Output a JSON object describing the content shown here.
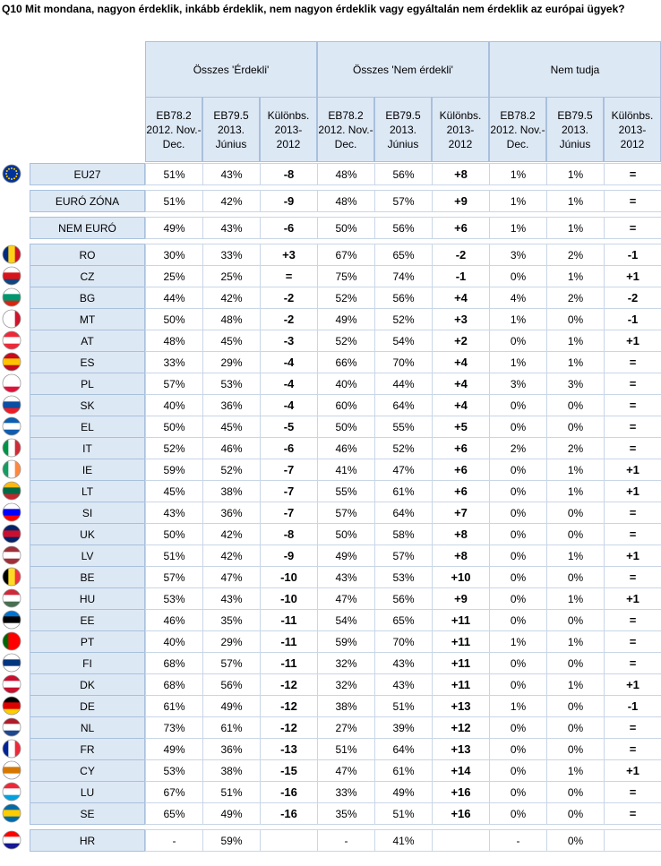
{
  "title": "Q10 Mit mondana, nagyon érdeklik, inkább érdeklik, nem nagyon érdeklik vagy egyáltalán nem érdeklik az európai ügyek?",
  "header": {
    "groups": [
      "Összes 'Érdekli'",
      "Összes 'Nem érdekli'",
      "Nem tudja"
    ],
    "subheaders": [
      "EB78.2\n2012. Nov.-\nDec.",
      "EB79.5\n2013.\nJúnius",
      "Különbs.\n2013-\n2012",
      "EB78.2\n2012. Nov.-\nDec.",
      "EB79.5\n2013.\nJúnius",
      "Különbs.\n2013-\n2012",
      "EB78.2\n2012. Nov.-\nDec.",
      "EB79.5\n2013.\nJúnius",
      "Különbs.\n2013-\n2012"
    ]
  },
  "table": {
    "rows": [
      {
        "label": "EU27",
        "cells": [
          "51%",
          "43%",
          "-8",
          "48%",
          "56%",
          "+8",
          "1%",
          "1%",
          "="
        ]
      },
      {
        "label": "EURÓ ZÓNA",
        "cells": [
          "51%",
          "42%",
          "-9",
          "48%",
          "57%",
          "+9",
          "1%",
          "1%",
          "="
        ]
      },
      {
        "label": "NEM EURÓ",
        "cells": [
          "49%",
          "43%",
          "-6",
          "50%",
          "56%",
          "+6",
          "1%",
          "1%",
          "="
        ]
      },
      {
        "label": "RO",
        "cells": [
          "30%",
          "33%",
          "+3",
          "67%",
          "65%",
          "-2",
          "3%",
          "2%",
          "-1"
        ]
      },
      {
        "label": "CZ",
        "cells": [
          "25%",
          "25%",
          "=",
          "75%",
          "74%",
          "-1",
          "0%",
          "1%",
          "+1"
        ]
      },
      {
        "label": "BG",
        "cells": [
          "44%",
          "42%",
          "-2",
          "52%",
          "56%",
          "+4",
          "4%",
          "2%",
          "-2"
        ]
      },
      {
        "label": "MT",
        "cells": [
          "50%",
          "48%",
          "-2",
          "49%",
          "52%",
          "+3",
          "1%",
          "0%",
          "-1"
        ]
      },
      {
        "label": "AT",
        "cells": [
          "48%",
          "45%",
          "-3",
          "52%",
          "54%",
          "+2",
          "0%",
          "1%",
          "+1"
        ]
      },
      {
        "label": "ES",
        "cells": [
          "33%",
          "29%",
          "-4",
          "66%",
          "70%",
          "+4",
          "1%",
          "1%",
          "="
        ]
      },
      {
        "label": "PL",
        "cells": [
          "57%",
          "53%",
          "-4",
          "40%",
          "44%",
          "+4",
          "3%",
          "3%",
          "="
        ]
      },
      {
        "label": "SK",
        "cells": [
          "40%",
          "36%",
          "-4",
          "60%",
          "64%",
          "+4",
          "0%",
          "0%",
          "="
        ]
      },
      {
        "label": "EL",
        "cells": [
          "50%",
          "45%",
          "-5",
          "50%",
          "55%",
          "+5",
          "0%",
          "0%",
          "="
        ]
      },
      {
        "label": "IT",
        "cells": [
          "52%",
          "46%",
          "-6",
          "46%",
          "52%",
          "+6",
          "2%",
          "2%",
          "="
        ]
      },
      {
        "label": "IE",
        "cells": [
          "59%",
          "52%",
          "-7",
          "41%",
          "47%",
          "+6",
          "0%",
          "1%",
          "+1"
        ]
      },
      {
        "label": "LT",
        "cells": [
          "45%",
          "38%",
          "-7",
          "55%",
          "61%",
          "+6",
          "0%",
          "1%",
          "+1"
        ]
      },
      {
        "label": "SI",
        "cells": [
          "43%",
          "36%",
          "-7",
          "57%",
          "64%",
          "+7",
          "0%",
          "0%",
          "="
        ]
      },
      {
        "label": "UK",
        "cells": [
          "50%",
          "42%",
          "-8",
          "50%",
          "58%",
          "+8",
          "0%",
          "0%",
          "="
        ]
      },
      {
        "label": "LV",
        "cells": [
          "51%",
          "42%",
          "-9",
          "49%",
          "57%",
          "+8",
          "0%",
          "1%",
          "+1"
        ]
      },
      {
        "label": "BE",
        "cells": [
          "57%",
          "47%",
          "-10",
          "43%",
          "53%",
          "+10",
          "0%",
          "0%",
          "="
        ]
      },
      {
        "label": "HU",
        "cells": [
          "53%",
          "43%",
          "-10",
          "47%",
          "56%",
          "+9",
          "0%",
          "1%",
          "+1"
        ]
      },
      {
        "label": "EE",
        "cells": [
          "46%",
          "35%",
          "-11",
          "54%",
          "65%",
          "+11",
          "0%",
          "0%",
          "="
        ]
      },
      {
        "label": "PT",
        "cells": [
          "40%",
          "29%",
          "-11",
          "59%",
          "70%",
          "+11",
          "1%",
          "1%",
          "="
        ]
      },
      {
        "label": "FI",
        "cells": [
          "68%",
          "57%",
          "-11",
          "32%",
          "43%",
          "+11",
          "0%",
          "0%",
          "="
        ]
      },
      {
        "label": "DK",
        "cells": [
          "68%",
          "56%",
          "-12",
          "32%",
          "43%",
          "+11",
          "0%",
          "1%",
          "+1"
        ]
      },
      {
        "label": "DE",
        "cells": [
          "61%",
          "49%",
          "-12",
          "38%",
          "51%",
          "+13",
          "1%",
          "0%",
          "-1"
        ]
      },
      {
        "label": "NL",
        "cells": [
          "73%",
          "61%",
          "-12",
          "27%",
          "39%",
          "+12",
          "0%",
          "0%",
          "="
        ]
      },
      {
        "label": "FR",
        "cells": [
          "49%",
          "36%",
          "-13",
          "51%",
          "64%",
          "+13",
          "0%",
          "0%",
          "="
        ]
      },
      {
        "label": "CY",
        "cells": [
          "53%",
          "38%",
          "-15",
          "47%",
          "61%",
          "+14",
          "0%",
          "1%",
          "+1"
        ]
      },
      {
        "label": "LU",
        "cells": [
          "67%",
          "51%",
          "-16",
          "33%",
          "49%",
          "+16",
          "0%",
          "0%",
          "="
        ]
      },
      {
        "label": "SE",
        "cells": [
          "65%",
          "49%",
          "-16",
          "35%",
          "51%",
          "+16",
          "0%",
          "0%",
          "="
        ]
      },
      {
        "label": "HR",
        "cells": [
          "-",
          "59%",
          null,
          "-",
          "41%",
          null,
          "-",
          "0%",
          null
        ]
      }
    ]
  }
}
